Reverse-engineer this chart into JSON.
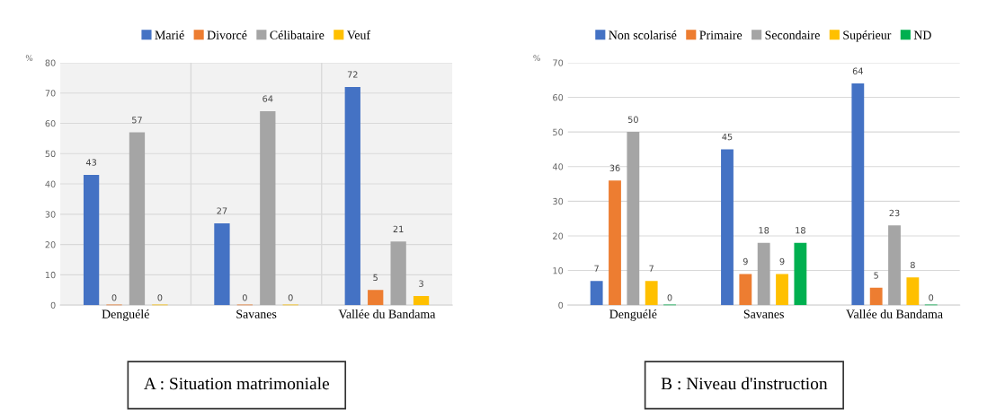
{
  "chart_data": [
    {
      "type": "bar",
      "title": "A : Situation matrimoniale",
      "ylabel": "%",
      "categories": [
        "Denguélé",
        "Savanes",
        "Vallée du Bandama"
      ],
      "series": [
        {
          "name": "Marié",
          "color": "#4472c4",
          "values": [
            43,
            27,
            72
          ]
        },
        {
          "name": "Divorcé",
          "color": "#ed7d31",
          "values": [
            0,
            0,
            5
          ]
        },
        {
          "name": "Célibataire",
          "color": "#a5a5a5",
          "values": [
            57,
            64,
            21
          ]
        },
        {
          "name": "Veuf",
          "color": "#ffc000",
          "values": [
            0,
            0,
            3
          ]
        }
      ],
      "ylim": [
        0,
        80
      ],
      "yticks": [
        0,
        10,
        20,
        30,
        40,
        50,
        60,
        70,
        80
      ],
      "grid": true,
      "legend": "top",
      "data_labels": true
    },
    {
      "type": "bar",
      "title": "B : Niveau d'instruction",
      "ylabel": "%",
      "categories": [
        "Denguélé",
        "Savanes",
        "Vallée du Bandama"
      ],
      "series": [
        {
          "name": "Non scolarisé",
          "color": "#4472c4",
          "values": [
            7,
            45,
            64
          ]
        },
        {
          "name": "Primaire",
          "color": "#ed7d31",
          "values": [
            36,
            9,
            5
          ]
        },
        {
          "name": "Secondaire",
          "color": "#a5a5a5",
          "values": [
            50,
            18,
            23
          ]
        },
        {
          "name": "Supérieur",
          "color": "#ffc000",
          "values": [
            7,
            9,
            8
          ]
        },
        {
          "name": "ND",
          "color": "#00b050",
          "values": [
            0,
            18,
            0
          ]
        }
      ],
      "ylim": [
        0,
        70
      ],
      "yticks": [
        0,
        10,
        20,
        30,
        40,
        50,
        60,
        70
      ],
      "grid": "y",
      "legend": "top",
      "data_labels": true
    }
  ]
}
